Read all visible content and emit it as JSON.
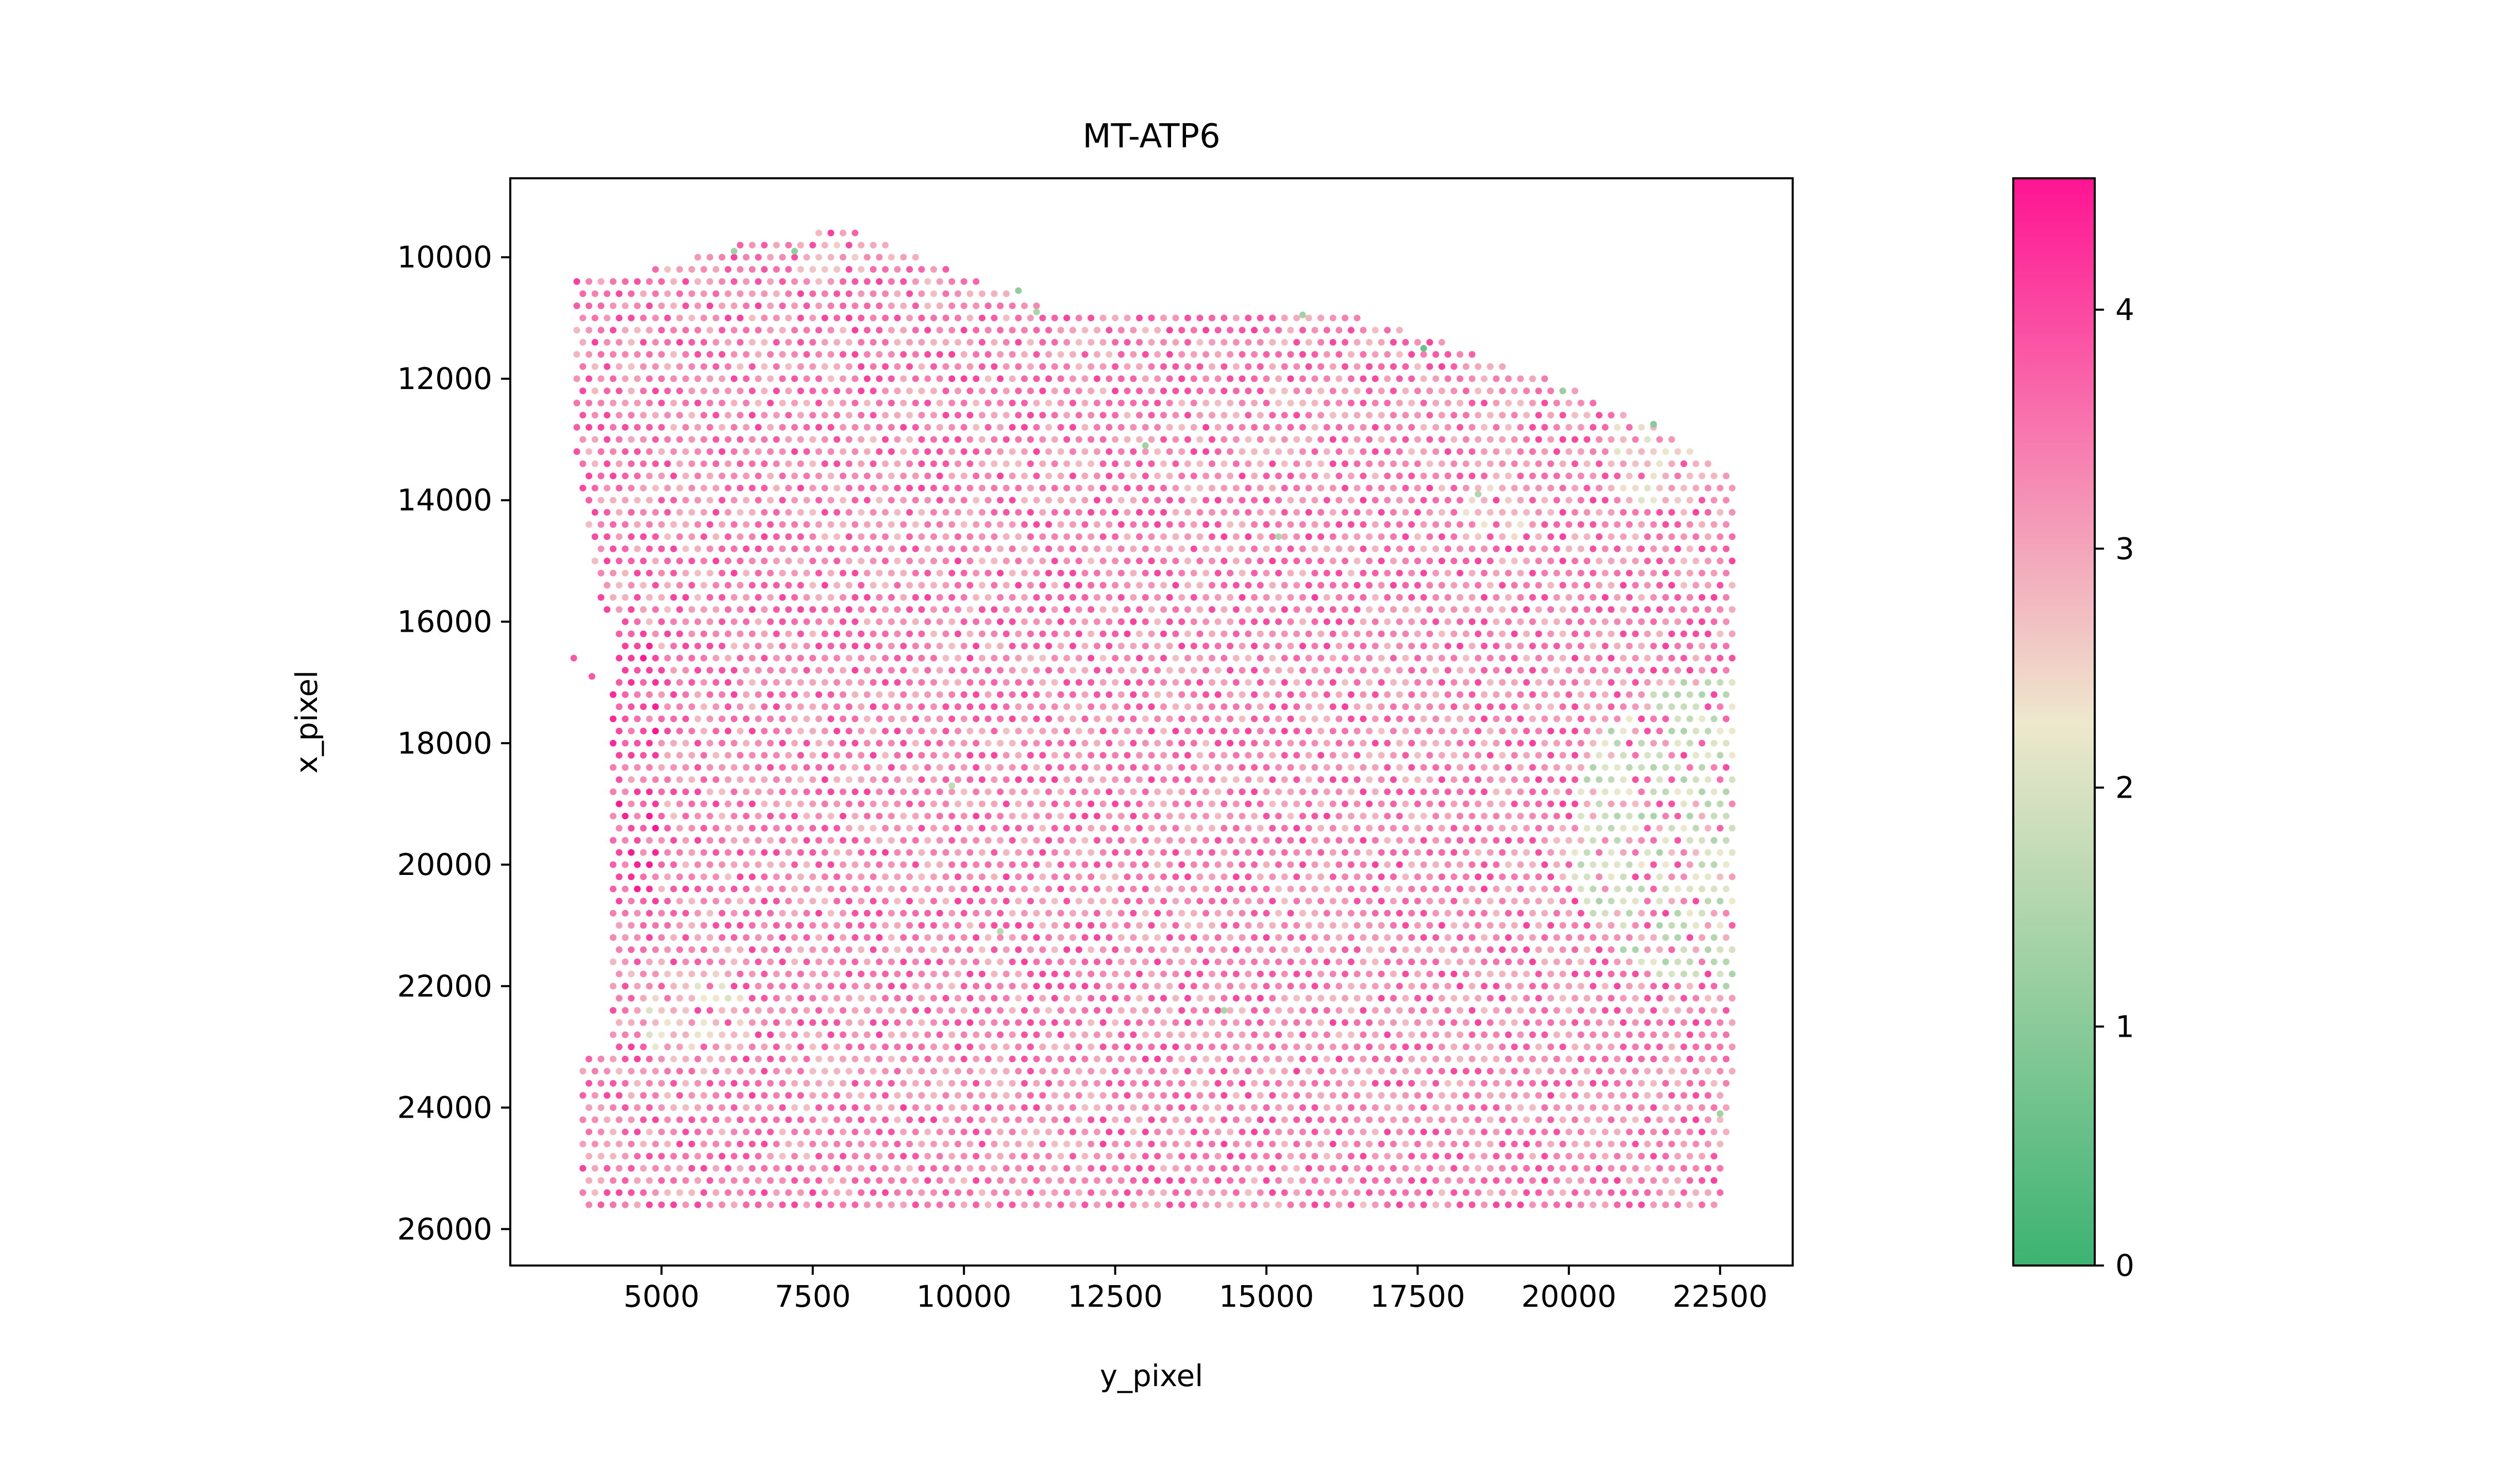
{
  "chart_data": {
    "type": "scatter",
    "title": "MT-ATP6",
    "xlabel": "y_pixel",
    "ylabel": "x_pixel",
    "xlim": [
      2500,
      23700
    ],
    "ylim": [
      26600,
      8700
    ],
    "y_axis_inverted": true,
    "x_ticks": [
      5000,
      7500,
      10000,
      12500,
      15000,
      17500,
      20000,
      22500
    ],
    "x_tick_labels": [
      "5000",
      "7500",
      "10000",
      "12500",
      "15000",
      "17500",
      "20000",
      "22500"
    ],
    "y_ticks": [
      10000,
      12000,
      14000,
      16000,
      18000,
      20000,
      22000,
      24000,
      26000
    ],
    "y_tick_labels": [
      "10000",
      "12000",
      "14000",
      "16000",
      "18000",
      "20000",
      "22000",
      "24000",
      "26000"
    ],
    "colorbar": {
      "range": [
        0,
        4.55
      ],
      "ticks": [
        0,
        1,
        2,
        3,
        4
      ],
      "tick_labels": [
        "0",
        "1",
        "2",
        "3",
        "4"
      ],
      "colors": [
        "#3cb371",
        "#eee8cd",
        "#ff1493"
      ]
    },
    "grid": false,
    "legend": "none",
    "tissue_outline": {
      "top_edge": [
        [
          4200,
          10350
        ],
        [
          6000,
          9850
        ],
        [
          8000,
          9500
        ],
        [
          10500,
          10450
        ],
        [
          11200,
          10800
        ],
        [
          15500,
          10850
        ],
        [
          16500,
          10950
        ],
        [
          18000,
          11400
        ],
        [
          20000,
          12150
        ],
        [
          21500,
          12800
        ],
        [
          22700,
          13650
        ]
      ],
      "bottom_row_y": 25700,
      "left_edge": [
        [
          9700,
          3600
        ],
        [
          13400,
          3600
        ],
        [
          15000,
          3850
        ],
        [
          17200,
          4200
        ],
        [
          23100,
          4200
        ],
        [
          23200,
          3650
        ],
        [
          25700,
          3650
        ]
      ],
      "right_edge": [
        [
          13650,
          22750
        ],
        [
          22900,
          22750
        ],
        [
          25700,
          22500
        ]
      ],
      "isolated_spots": [
        [
          16600,
          3550
        ],
        [
          16900,
          3850
        ]
      ],
      "hole": [
        15800,
        17200,
        3400,
        4250
      ]
    },
    "spot_spacing": 200,
    "typical_value": 3.4,
    "low_value_regions": [
      {
        "x": 5600,
        "y": 22500,
        "r": 900,
        "value": 2.0
      },
      {
        "x": 18800,
        "y": 14100,
        "r": 600,
        "value": 2.2
      },
      {
        "x": 22600,
        "y": 19500,
        "r": 2600,
        "value": 1.4
      },
      {
        "x": 7800,
        "y": 9700,
        "r": 700,
        "value": 2.2
      },
      {
        "x": 21500,
        "y": 13200,
        "r": 900,
        "value": 2.0
      },
      {
        "x": 4100,
        "y": 18500,
        "r": 500,
        "value": 2.3
      }
    ],
    "highlighted_spots": [
      {
        "x": 17600,
        "y": 11500,
        "value": 0.6
      },
      {
        "x": 6200,
        "y": 9900,
        "value": 1.3
      },
      {
        "x": 7200,
        "y": 9900,
        "value": 1.1
      },
      {
        "x": 10900,
        "y": 10550,
        "value": 1.1
      },
      {
        "x": 11200,
        "y": 10900,
        "value": 1.4
      },
      {
        "x": 15600,
        "y": 10950,
        "value": 1.3
      },
      {
        "x": 19900,
        "y": 12200,
        "value": 1.2
      },
      {
        "x": 21400,
        "y": 12750,
        "value": 1.0
      },
      {
        "x": 13000,
        "y": 13100,
        "value": 1.3
      },
      {
        "x": 15200,
        "y": 14600,
        "value": 1.5
      },
      {
        "x": 14300,
        "y": 22400,
        "value": 1.4
      },
      {
        "x": 18500,
        "y": 13900,
        "value": 1.5
      },
      {
        "x": 22500,
        "y": 24100,
        "value": 1.3
      },
      {
        "x": 10600,
        "y": 21100,
        "value": 1.6
      },
      {
        "x": 9800,
        "y": 18700,
        "value": 1.7
      }
    ]
  }
}
